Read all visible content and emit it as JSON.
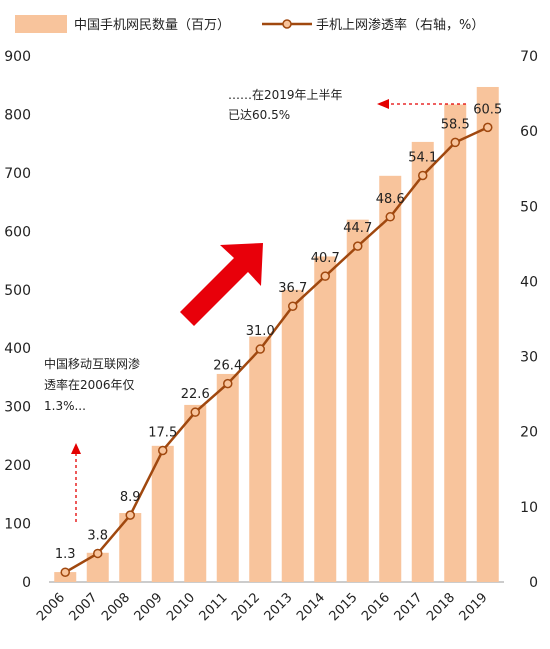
{
  "chart_data": {
    "type": "bar",
    "categories": [
      "2006",
      "2007",
      "2008",
      "2009",
      "2010",
      "2011",
      "2012",
      "2013",
      "2014",
      "2015",
      "2016",
      "2017",
      "2018",
      "2019"
    ],
    "series": [
      {
        "name": "中国手机网民数量（百万）",
        "type": "bar",
        "axis": "left",
        "values": [
          17,
          50,
          118,
          233,
          303,
          356,
          420,
          500,
          557,
          620,
          695,
          753,
          817,
          847
        ]
      },
      {
        "name": "手机上网渗透率（右轴，%）",
        "type": "line",
        "axis": "right",
        "values": [
          1.3,
          3.8,
          8.9,
          17.5,
          22.6,
          26.4,
          31.0,
          36.7,
          40.7,
          44.7,
          48.6,
          54.1,
          58.5,
          60.5
        ],
        "labels": [
          "1.3",
          "3.8",
          "8.9",
          "17.5",
          "22.6",
          "26.4",
          "31.0",
          "36.7",
          "40.7",
          "44.7",
          "48.6",
          "54.1",
          "58.5",
          "60.5"
        ]
      }
    ],
    "ylim": [
      0,
      900
    ],
    "yticks": [
      "0",
      "100",
      "200",
      "300",
      "400",
      "500",
      "600",
      "700",
      "800",
      "900"
    ],
    "y2lim": [
      0,
      70
    ],
    "y2ticks": [
      "0",
      "10",
      "20",
      "30",
      "40",
      "50",
      "60",
      "70"
    ],
    "grid": false,
    "legend_position": "top",
    "colors": {
      "bar": "#F8C49C",
      "line": "#A0480F",
      "arrow": "#E8000A",
      "annotation_arrow": "#E30000"
    },
    "annotations": {
      "left_line1": "中国移动互联网渗",
      "left_line2": "透率在2006年仅",
      "left_line3": "1.3%...",
      "right_line1": "……在2019年上半年",
      "right_line2": "已达60.5%"
    }
  }
}
